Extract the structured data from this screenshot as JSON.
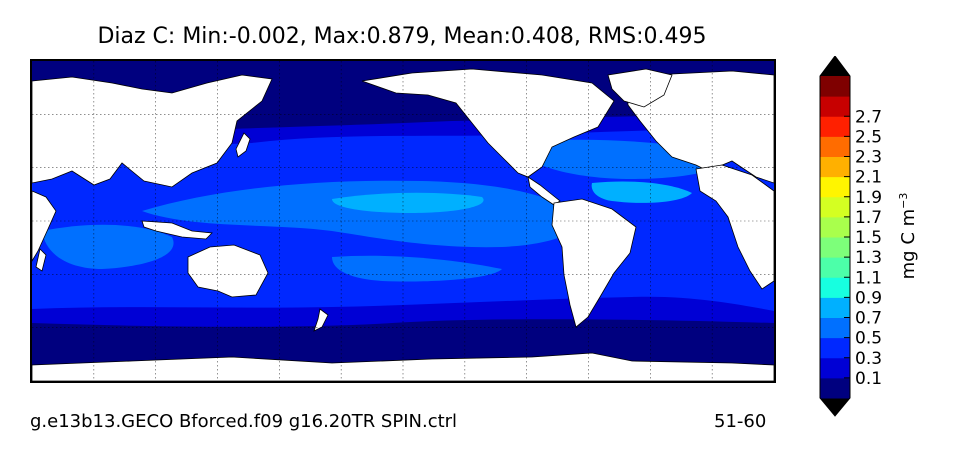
{
  "title": "Diaz C: Min:-0.002, Max:0.879, Mean:0.408, RMS:0.495",
  "footer": {
    "run_name": "g.e13b13.GECO Bforced.f09 g16.20TR SPIN.ctrl",
    "years": "51-60"
  },
  "colorbar": {
    "unit_base": "mg C m",
    "unit_exponent": "−3",
    "tick_labels": [
      "0.1",
      "0.3",
      "0.5",
      "0.7",
      "0.9",
      "1.1",
      "1.3",
      "1.5",
      "1.7",
      "1.9",
      "2.1",
      "2.3",
      "2.5",
      "2.7"
    ],
    "colors": [
      "#00007f",
      "#0000d5",
      "#0028ff",
      "#0070ff",
      "#00b0ff",
      "#17ffe0",
      "#4cffa9",
      "#7dff7a",
      "#a9ff4c",
      "#d4ff22",
      "#fff500",
      "#ffb000",
      "#ff6c00",
      "#ff2000",
      "#c70000",
      "#7f0000"
    ],
    "min_arrow_color": "#000000",
    "max_arrow_color": "#000000"
  },
  "map": {
    "land_color": "#ffffff",
    "gridlines": true,
    "projection": "cylindrical, Pacific-centered"
  }
}
